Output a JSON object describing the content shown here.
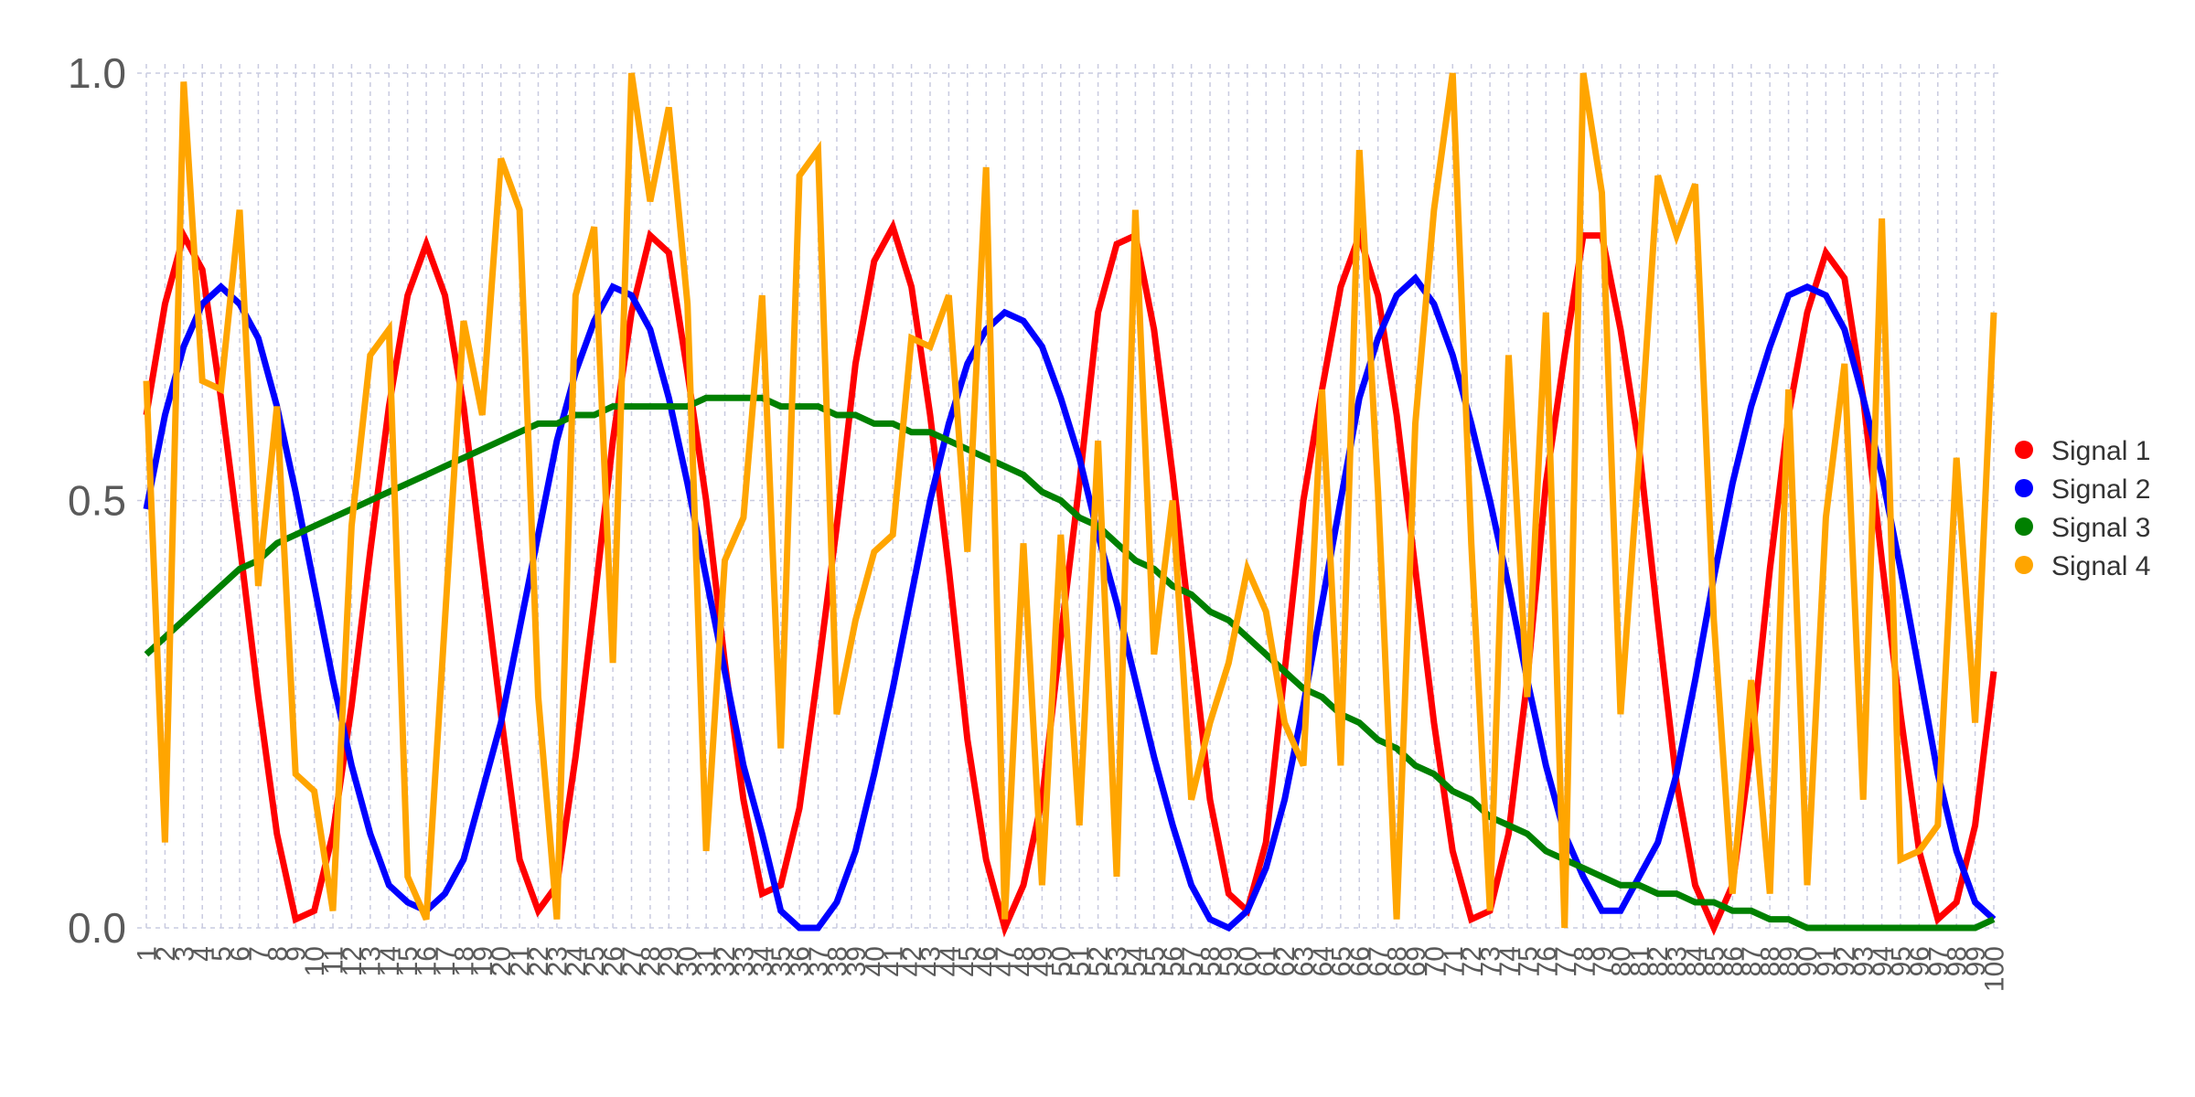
{
  "chart_data": {
    "type": "line",
    "title": "",
    "xlabel": "",
    "ylabel": "",
    "x": [
      1,
      2,
      3,
      4,
      5,
      6,
      7,
      8,
      9,
      10,
      11,
      12,
      13,
      14,
      15,
      16,
      17,
      18,
      19,
      20,
      21,
      22,
      23,
      24,
      25,
      26,
      27,
      28,
      29,
      30,
      31,
      32,
      33,
      34,
      35,
      36,
      37,
      38,
      39,
      40,
      41,
      42,
      43,
      44,
      45,
      46,
      47,
      48,
      49,
      50,
      51,
      52,
      53,
      54,
      55,
      56,
      57,
      58,
      59,
      60,
      61,
      62,
      63,
      64,
      65,
      66,
      67,
      68,
      69,
      70,
      71,
      72,
      73,
      74,
      75,
      76,
      77,
      78,
      79,
      80,
      81,
      82,
      83,
      84,
      85,
      86,
      87,
      88,
      89,
      90,
      91,
      92,
      93,
      94,
      95,
      96,
      97,
      98,
      99,
      100
    ],
    "xlim": [
      1,
      100
    ],
    "ylim": [
      0,
      1
    ],
    "yticks": [
      0.0,
      0.5,
      1.0
    ],
    "ytick_labels": [
      "0.0",
      "0.5",
      "1.0"
    ],
    "grid": true,
    "legend_position": "right",
    "series": [
      {
        "name": "Signal 1",
        "color": "#ff0000",
        "values": [
          0.6,
          0.73,
          0.81,
          0.77,
          0.62,
          0.45,
          0.27,
          0.11,
          0.01,
          0.02,
          0.11,
          0.26,
          0.44,
          0.61,
          0.74,
          0.8,
          0.74,
          0.61,
          0.43,
          0.25,
          0.08,
          0.02,
          0.05,
          0.2,
          0.38,
          0.57,
          0.72,
          0.81,
          0.79,
          0.65,
          0.5,
          0.31,
          0.15,
          0.04,
          0.05,
          0.14,
          0.3,
          0.47,
          0.66,
          0.78,
          0.82,
          0.75,
          0.6,
          0.42,
          0.22,
          0.08,
          0.0,
          0.05,
          0.15,
          0.34,
          0.52,
          0.72,
          0.8,
          0.81,
          0.7,
          0.53,
          0.34,
          0.15,
          0.04,
          0.02,
          0.1,
          0.3,
          0.5,
          0.63,
          0.75,
          0.81,
          0.74,
          0.6,
          0.42,
          0.24,
          0.09,
          0.01,
          0.02,
          0.11,
          0.29,
          0.52,
          0.67,
          0.81,
          0.81,
          0.7,
          0.56,
          0.36,
          0.17,
          0.05,
          0.0,
          0.05,
          0.21,
          0.42,
          0.6,
          0.72,
          0.79,
          0.76,
          0.62,
          0.43,
          0.25,
          0.09,
          0.01,
          0.03,
          0.12,
          0.3
        ]
      },
      {
        "name": "Signal 2",
        "color": "#0000ff",
        "values": [
          0.49,
          0.6,
          0.68,
          0.73,
          0.75,
          0.73,
          0.69,
          0.61,
          0.51,
          0.4,
          0.29,
          0.19,
          0.11,
          0.05,
          0.03,
          0.02,
          0.04,
          0.08,
          0.16,
          0.24,
          0.35,
          0.46,
          0.57,
          0.65,
          0.71,
          0.75,
          0.74,
          0.7,
          0.62,
          0.52,
          0.41,
          0.3,
          0.19,
          0.11,
          0.02,
          0.0,
          0.0,
          0.03,
          0.09,
          0.18,
          0.28,
          0.39,
          0.5,
          0.59,
          0.66,
          0.7,
          0.72,
          0.71,
          0.68,
          0.62,
          0.55,
          0.46,
          0.38,
          0.29,
          0.2,
          0.12,
          0.05,
          0.01,
          0.0,
          0.02,
          0.07,
          0.15,
          0.26,
          0.38,
          0.5,
          0.62,
          0.69,
          0.74,
          0.76,
          0.73,
          0.67,
          0.59,
          0.5,
          0.4,
          0.29,
          0.19,
          0.11,
          0.06,
          0.02,
          0.02,
          0.06,
          0.1,
          0.18,
          0.29,
          0.41,
          0.52,
          0.61,
          0.68,
          0.74,
          0.75,
          0.74,
          0.7,
          0.62,
          0.53,
          0.42,
          0.3,
          0.18,
          0.09,
          0.03,
          0.01
        ]
      },
      {
        "name": "Signal 3",
        "color": "#008000",
        "values": [
          0.32,
          0.34,
          0.36,
          0.38,
          0.4,
          0.42,
          0.43,
          0.45,
          0.46,
          0.47,
          0.48,
          0.49,
          0.5,
          0.51,
          0.52,
          0.53,
          0.54,
          0.55,
          0.56,
          0.57,
          0.58,
          0.59,
          0.59,
          0.6,
          0.6,
          0.61,
          0.61,
          0.61,
          0.61,
          0.61,
          0.62,
          0.62,
          0.62,
          0.62,
          0.61,
          0.61,
          0.61,
          0.6,
          0.6,
          0.59,
          0.59,
          0.58,
          0.58,
          0.57,
          0.56,
          0.55,
          0.54,
          0.53,
          0.51,
          0.5,
          0.48,
          0.47,
          0.45,
          0.43,
          0.42,
          0.4,
          0.39,
          0.37,
          0.36,
          0.34,
          0.32,
          0.3,
          0.28,
          0.27,
          0.25,
          0.24,
          0.22,
          0.21,
          0.19,
          0.18,
          0.16,
          0.15,
          0.13,
          0.12,
          0.11,
          0.09,
          0.08,
          0.07,
          0.06,
          0.05,
          0.05,
          0.04,
          0.04,
          0.03,
          0.03,
          0.02,
          0.02,
          0.01,
          0.01,
          0.0,
          0.0,
          0.0,
          0.0,
          0.0,
          0.0,
          0.0,
          0.0,
          0.0,
          0.0,
          0.01
        ]
      },
      {
        "name": "Signal 4",
        "color": "#ffa500",
        "values": [
          0.64,
          0.1,
          0.99,
          0.64,
          0.63,
          0.84,
          0.4,
          0.61,
          0.18,
          0.16,
          0.02,
          0.47,
          0.67,
          0.7,
          0.06,
          0.01,
          0.36,
          0.71,
          0.6,
          0.9,
          0.84,
          0.27,
          0.01,
          0.74,
          0.82,
          0.31,
          1.0,
          0.85,
          0.96,
          0.73,
          0.09,
          0.43,
          0.48,
          0.74,
          0.21,
          0.88,
          0.91,
          0.25,
          0.36,
          0.44,
          0.46,
          0.69,
          0.68,
          0.74,
          0.44,
          0.89,
          0.01,
          0.45,
          0.05,
          0.46,
          0.12,
          0.57,
          0.06,
          0.84,
          0.32,
          0.5,
          0.15,
          0.24,
          0.31,
          0.42,
          0.37,
          0.24,
          0.19,
          0.63,
          0.19,
          0.91,
          0.51,
          0.01,
          0.59,
          0.84,
          1.0,
          0.45,
          0.02,
          0.67,
          0.27,
          0.72,
          0.0,
          1.0,
          0.86,
          0.25,
          0.55,
          0.88,
          0.81,
          0.87,
          0.36,
          0.04,
          0.29,
          0.04,
          0.63,
          0.05,
          0.48,
          0.66,
          0.15,
          0.83,
          0.08,
          0.09,
          0.12,
          0.55,
          0.24,
          0.72
        ]
      }
    ]
  }
}
